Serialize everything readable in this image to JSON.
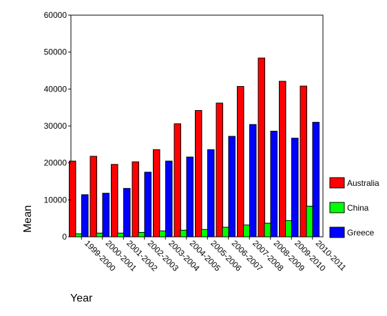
{
  "chart_data": {
    "type": "bar",
    "title": "",
    "xlabel": "Year",
    "ylabel": "Mean",
    "ylim": [
      0,
      60000
    ],
    "yticks": [
      0,
      10000,
      20000,
      30000,
      40000,
      50000,
      60000
    ],
    "grid": false,
    "legend_position": "right",
    "categories": [
      "1999-2000",
      "2000-2001",
      "2001-2002",
      "2002-2003",
      "2003-2004",
      "2004-2005",
      "2005-2006",
      "2006-2007",
      "2007-2008",
      "2008-2009",
      "2009-2010",
      "2010-2011"
    ],
    "series": [
      {
        "name": "Australia",
        "color": "#ff0000",
        "values": [
          20500,
          21800,
          19600,
          20300,
          23600,
          30600,
          34200,
          36200,
          40700,
          48400,
          42100,
          40800
        ]
      },
      {
        "name": "China",
        "color": "#00ff00",
        "values": [
          800,
          1000,
          1000,
          1200,
          1600,
          1800,
          2000,
          2600,
          3200,
          3700,
          4400,
          8300
        ]
      },
      {
        "name": "Greece",
        "color": "#0000ff",
        "values": [
          11400,
          11800,
          13100,
          17500,
          20500,
          21600,
          23600,
          27200,
          30400,
          28600,
          26700,
          31000
        ]
      }
    ]
  }
}
